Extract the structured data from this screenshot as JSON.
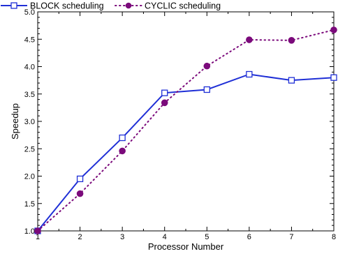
{
  "chart_data": {
    "type": "line",
    "title": "",
    "xlabel": "Processor Number",
    "ylabel": "Speedup",
    "xlim": [
      1,
      8
    ],
    "ylim": [
      1.0,
      5.0
    ],
    "x_ticks": [
      "1",
      "2",
      "3",
      "4",
      "5",
      "6",
      "7",
      "8"
    ],
    "y_ticks": [
      "1.0",
      "1.5",
      "2.0",
      "2.5",
      "3.0",
      "3.5",
      "4.0",
      "4.5",
      "5.0"
    ],
    "grid": false,
    "legend_position": "top-left, above plot",
    "x": [
      1,
      2,
      3,
      4,
      5,
      6,
      7,
      8
    ],
    "series": [
      {
        "name": "BLOCK scheduling",
        "values": [
          1.0,
          1.95,
          2.7,
          3.52,
          3.58,
          3.86,
          3.75,
          3.8
        ],
        "color": "#1f2fd6",
        "line_style": "solid",
        "marker": "open-square"
      },
      {
        "name": "CYCLIC scheduling",
        "values": [
          1.0,
          1.68,
          2.46,
          3.34,
          4.01,
          4.49,
          4.48,
          4.67
        ],
        "color": "#7b0a7b",
        "line_style": "dotted",
        "marker": "filled-circle"
      }
    ]
  }
}
